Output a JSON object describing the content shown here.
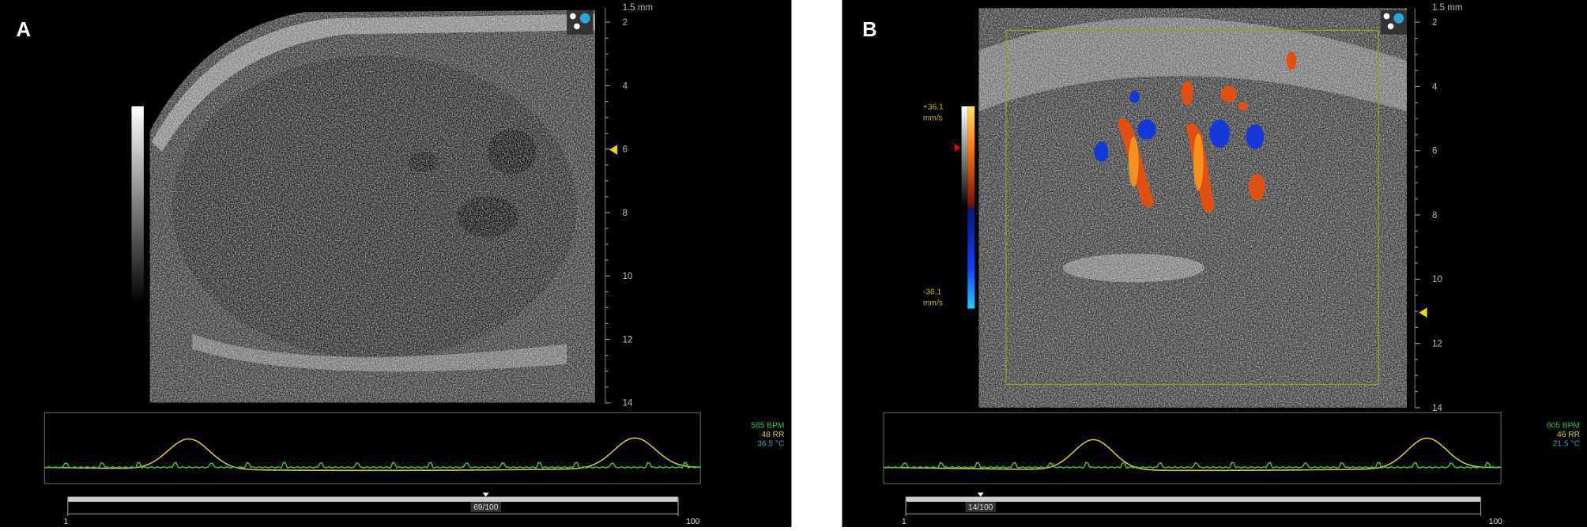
{
  "panels": [
    {
      "label": "A",
      "depth_unit": "1.5 mm",
      "depth_ticks": [
        "2",
        "4",
        "6",
        "8",
        "10",
        "12",
        "14"
      ],
      "vitals": [
        "585 BPM",
        "48 RR",
        "36.5 °C"
      ],
      "frame": "69/100",
      "slider_min": "1",
      "slider_max": "100"
    },
    {
      "label": "B",
      "depth_unit": "1.5 mm",
      "depth_ticks": [
        "2",
        "4",
        "6",
        "8",
        "10",
        "12",
        "14"
      ],
      "velocity_max": "+36.1",
      "velocity_max_unit": "mm/s",
      "velocity_min": "-36.1",
      "velocity_min_unit": "mm/s",
      "vitals": [
        "605 BPM",
        "46 RR",
        "21.5 °C"
      ],
      "frame": "14/100",
      "slider_min": "1",
      "slider_max": "100"
    }
  ]
}
